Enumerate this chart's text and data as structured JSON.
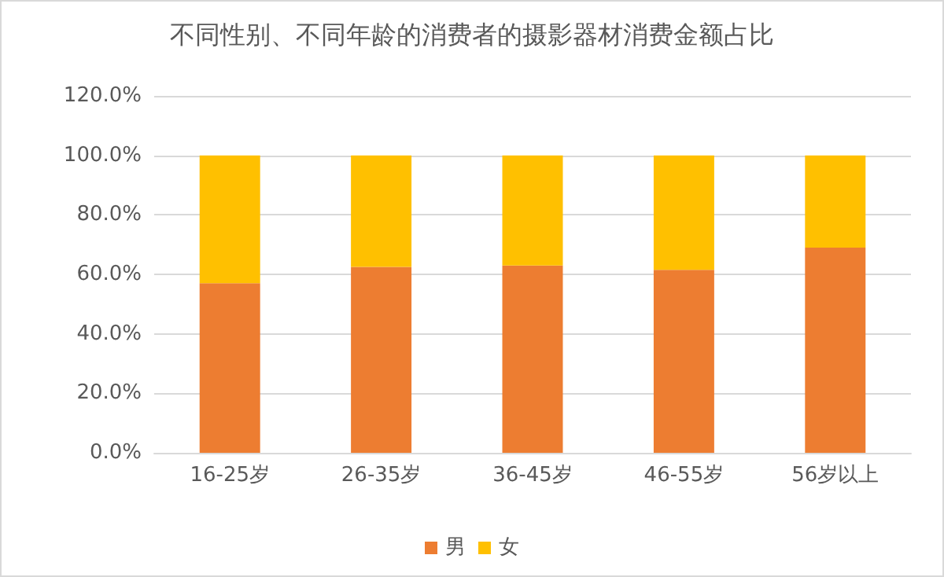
{
  "chart_data": {
    "type": "bar",
    "title": "不同性别、不同年龄的消费者的摄影器材消费金额占比",
    "categories": [
      "16-25岁",
      "26-35岁",
      "36-45岁",
      "46-55岁",
      "56岁以上"
    ],
    "stacked": true,
    "series": [
      {
        "name": "男",
        "color": "#ed7d31",
        "values": [
          57,
          62.5,
          63,
          61.5,
          69
        ]
      },
      {
        "name": "女",
        "color": "#ffc000",
        "values": [
          43,
          37.5,
          37,
          38.5,
          31
        ]
      }
    ],
    "ylim": [
      0,
      120
    ],
    "yticks": [
      {
        "value": 0,
        "label": "0.0%"
      },
      {
        "value": 20,
        "label": "20.0%"
      },
      {
        "value": 40,
        "label": "40.0%"
      },
      {
        "value": 60,
        "label": "60.0%"
      },
      {
        "value": 80,
        "label": "80.0%"
      },
      {
        "value": 100,
        "label": "100.0%"
      },
      {
        "value": 120,
        "label": "120.0%"
      }
    ],
    "grid": "y",
    "legend": "bottom"
  }
}
